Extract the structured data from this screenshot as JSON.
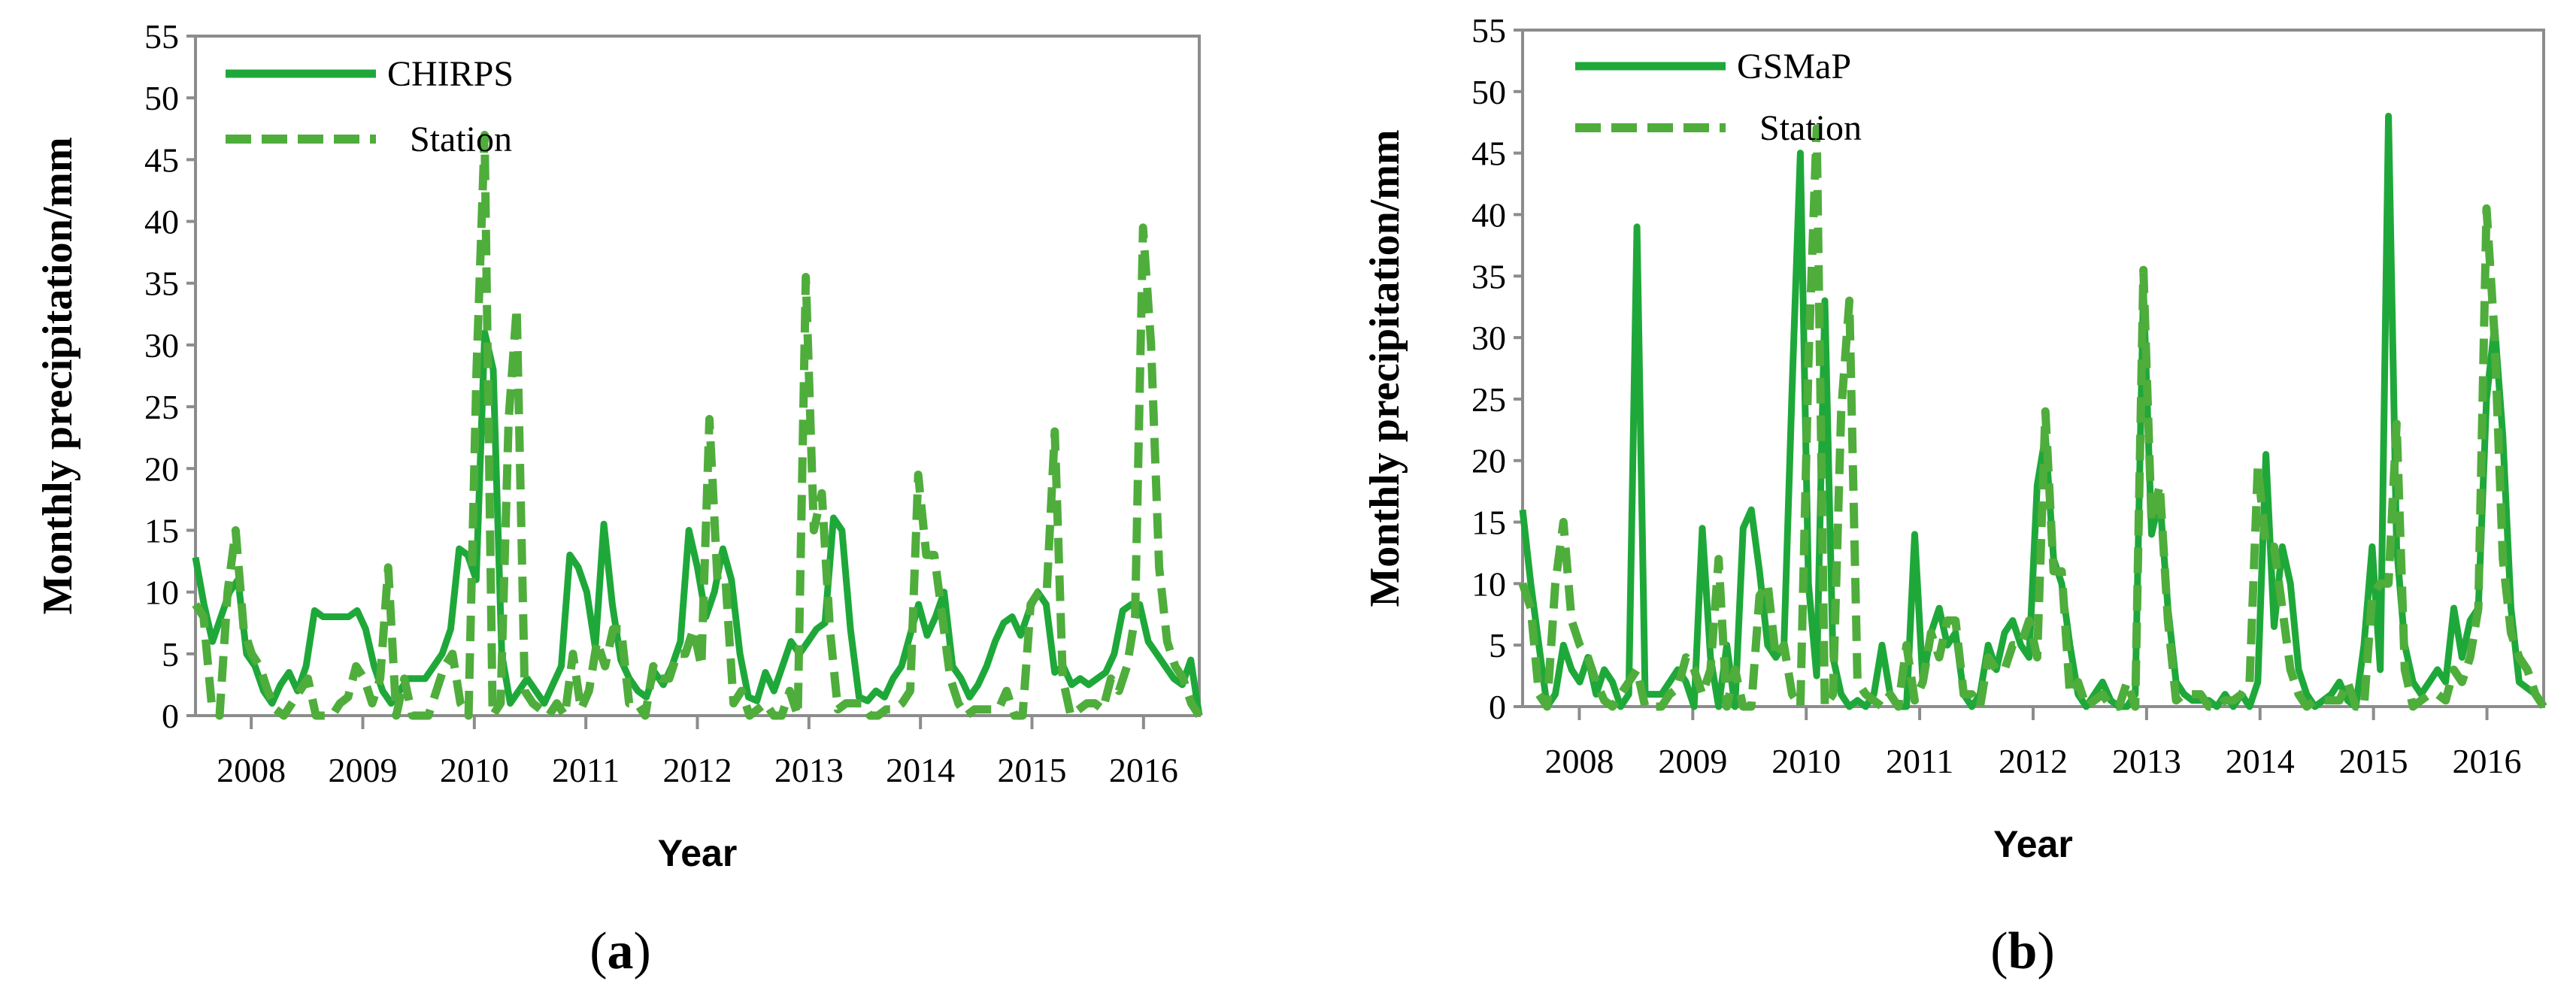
{
  "chart_data": [
    {
      "type": "line",
      "panel_label_parts": [
        "(",
        "a",
        ")"
      ],
      "xlabel": "Year",
      "ylabel": "Monthly precipitation/mm",
      "ylim": [
        0,
        55
      ],
      "yticks": [
        0,
        5,
        10,
        15,
        20,
        25,
        30,
        35,
        40,
        45,
        50,
        55
      ],
      "xlim": [
        2007.5,
        2016.5
      ],
      "xticks": [
        "2008",
        "2009",
        "2010",
        "2011",
        "2012",
        "2013",
        "2014",
        "2015",
        "2016"
      ],
      "legend_position": "top-left",
      "color": "#2ca02c",
      "series": [
        {
          "name": "CHIRPS",
          "style": "solid",
          "values": [
            12.8,
            9,
            6,
            8,
            10,
            11,
            5,
            4,
            2,
            1,
            2.5,
            3.5,
            2,
            4,
            8.5,
            8,
            8,
            8,
            8,
            8.5,
            7,
            4,
            2,
            1,
            2,
            3,
            3,
            3,
            4,
            5,
            7,
            13.5,
            13,
            11,
            31,
            28,
            5,
            1,
            2,
            3,
            2,
            1,
            2.5,
            4,
            13,
            12,
            10,
            5.5,
            15.5,
            9,
            4.5,
            3,
            2,
            1.5,
            3.5,
            2.5,
            4,
            6,
            15,
            12,
            8,
            10,
            13.5,
            11,
            5,
            1.5,
            1.2,
            3.5,
            2,
            4,
            6,
            5,
            6,
            7,
            7.5,
            16,
            15,
            7,
            1.5,
            1.2,
            2,
            1.5,
            3,
            4,
            6.5,
            9,
            6.5,
            8,
            10,
            4,
            3,
            1.5,
            2.5,
            4,
            6,
            7.5,
            8,
            6.5,
            8.5,
            10,
            9,
            3.5,
            4,
            2.5,
            3,
            2.5,
            3,
            3.5,
            5,
            8.5,
            9,
            9,
            6,
            5,
            4,
            3,
            2.5,
            4.5,
            0
          ]
        },
        {
          "name": "Station",
          "style": "dashed",
          "values": [
            9,
            8,
            1,
            0,
            10,
            15,
            7,
            5,
            4,
            2,
            0.5,
            0,
            1,
            2,
            3,
            0,
            0,
            0,
            1,
            1.5,
            4,
            3,
            1,
            3,
            12,
            0,
            3,
            0,
            0,
            0,
            2,
            4,
            5,
            1,
            0,
            28,
            47,
            0,
            1,
            24,
            33,
            2,
            1,
            0.5,
            0,
            1,
            0,
            5,
            0.5,
            2,
            6,
            4,
            7,
            7,
            1,
            1,
            0,
            4,
            3,
            3,
            5,
            5,
            7,
            4,
            24,
            11,
            11,
            1,
            2,
            0,
            0.5,
            1,
            0,
            0,
            2,
            0,
            35.5,
            15,
            18,
            7,
            0.5,
            1,
            1,
            1,
            0,
            0,
            0.5,
            0.5,
            1,
            2,
            19.5,
            13,
            13,
            8,
            3,
            1,
            0,
            0.5,
            0.5,
            0.5,
            0.5,
            2,
            0,
            0,
            9,
            10,
            10,
            23,
            3,
            0,
            0.5,
            1,
            1,
            0.5,
            3,
            2,
            4,
            8,
            39.5,
            30,
            12,
            6,
            4,
            3,
            1,
            0
          ]
        }
      ]
    },
    {
      "type": "line",
      "panel_label_parts": [
        "(",
        "b",
        ")"
      ],
      "xlabel": "Year",
      "ylabel": "Monthly precipitation/mm",
      "ylim": [
        0,
        55
      ],
      "yticks": [
        0,
        5,
        10,
        15,
        20,
        25,
        30,
        35,
        40,
        45,
        50,
        55
      ],
      "xlim": [
        2007.5,
        2016.5
      ],
      "xticks": [
        "2008",
        "2009",
        "2010",
        "2011",
        "2012",
        "2013",
        "2014",
        "2015",
        "2016"
      ],
      "legend_position": "top-left",
      "color": "#2ca02c",
      "series": [
        {
          "name": "GSMaP",
          "style": "solid",
          "values": [
            16,
            10,
            5,
            0,
            1,
            5,
            3,
            2,
            4,
            1,
            3,
            2,
            0,
            1,
            39,
            1,
            1,
            1,
            2,
            3,
            2,
            0,
            14.5,
            4,
            0,
            5,
            0,
            14.5,
            16,
            11,
            5,
            4,
            5,
            26,
            45,
            10,
            2.5,
            33,
            4,
            1,
            0,
            0.5,
            0,
            1,
            5,
            1,
            0,
            0,
            14,
            2,
            6,
            8,
            5,
            6,
            1,
            0,
            1,
            5,
            3,
            6,
            7,
            5,
            4,
            18,
            22,
            12,
            10,
            5,
            1,
            0,
            1,
            2,
            0.5,
            0,
            0,
            1,
            34,
            14,
            17,
            8,
            2,
            1,
            0.5,
            0.5,
            0.5,
            0,
            1,
            0,
            1,
            0,
            2,
            20.5,
            6.5,
            13,
            10,
            3,
            1,
            0,
            0.5,
            1,
            2,
            0.5,
            0,
            5,
            13,
            3,
            48,
            13,
            5,
            2,
            1,
            2,
            3,
            2,
            8,
            4,
            7,
            8,
            25,
            31,
            22,
            8,
            2,
            1.5,
            1,
            0
          ]
        },
        {
          "name": "Station",
          "style": "dashed",
          "values": [
            10,
            8,
            1,
            0,
            10,
            15,
            7,
            5,
            4,
            2,
            0.5,
            0,
            1,
            2,
            3,
            0,
            0,
            0,
            1,
            1.5,
            4,
            3,
            1,
            3,
            12,
            0,
            3,
            0,
            0,
            9,
            10,
            4,
            5,
            1,
            0,
            28,
            47,
            0,
            1,
            24,
            33,
            2,
            1,
            0.5,
            0,
            1,
            0,
            5,
            0.5,
            2,
            6,
            4,
            7,
            7,
            1,
            1,
            0,
            4,
            3,
            3,
            5,
            5,
            7,
            4,
            24,
            11,
            11,
            1,
            2,
            0,
            0.5,
            1,
            0,
            0,
            2,
            0,
            35.5,
            15,
            18,
            7,
            0.5,
            1,
            1,
            1,
            0,
            0,
            0.5,
            0.5,
            1,
            2,
            19.5,
            13,
            13,
            8,
            3,
            1,
            0,
            0.5,
            0.5,
            0.5,
            0.5,
            2,
            0,
            0,
            9,
            10,
            10,
            23,
            3,
            0,
            0.5,
            1,
            1,
            0.5,
            3,
            2,
            4,
            8,
            40.5,
            30,
            12,
            6,
            4,
            3,
            1,
            0
          ]
        }
      ]
    }
  ]
}
